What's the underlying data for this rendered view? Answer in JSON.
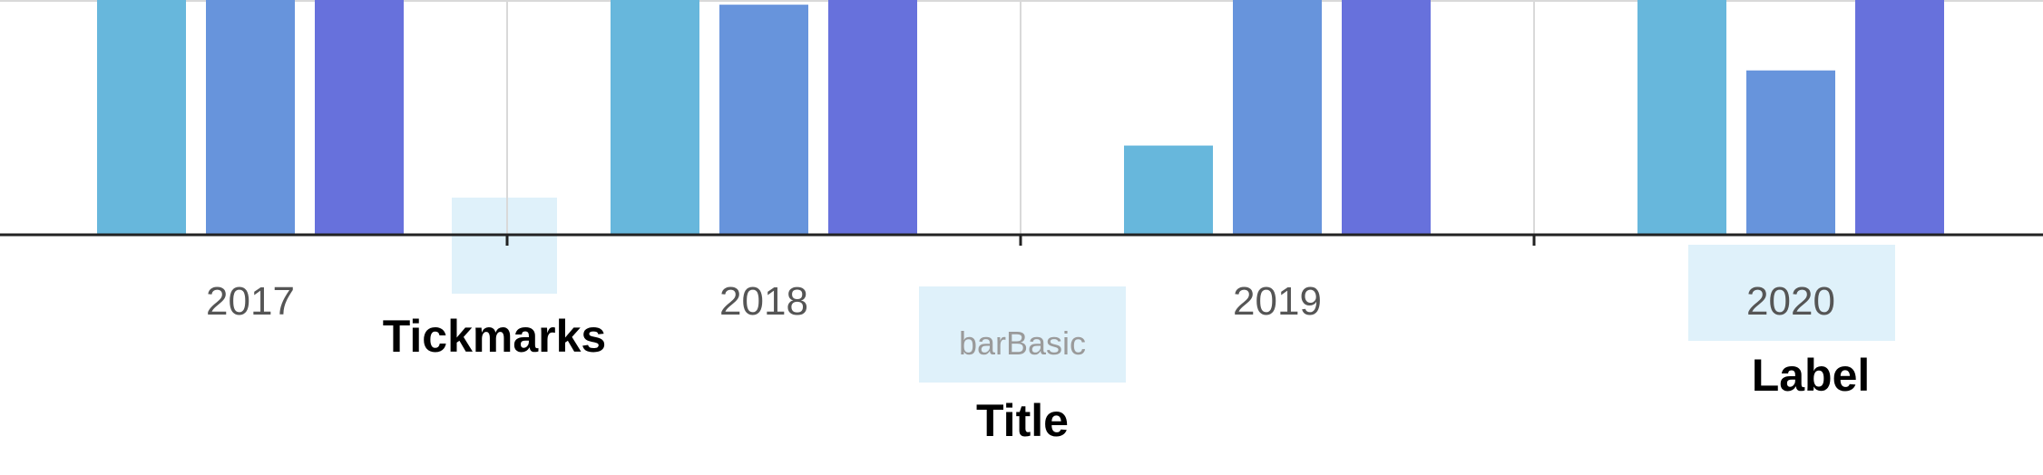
{
  "chart_data": {
    "type": "bar",
    "categories": [
      "2017",
      "2018",
      "2019",
      "2020"
    ],
    "series": [
      {
        "values": [
          100,
          100,
          38,
          100
        ]
      },
      {
        "values": [
          100,
          98,
          100,
          70
        ]
      },
      {
        "values": [
          100,
          100,
          100,
          100
        ]
      }
    ],
    "title": "",
    "xlabel": "barBasic",
    "ylabel": "",
    "ylim": [
      0,
      100
    ],
    "grid": true,
    "series_colors": [
      "#67b7dc",
      "#6794dc",
      "#6771dc"
    ]
  },
  "callouts": {
    "tickmarks": "Tickmarks",
    "title": "Title",
    "label": "Label"
  },
  "colors": {
    "highlight": "#dff1fa",
    "gridline": "#d9d9d9",
    "axis": "#222222"
  }
}
